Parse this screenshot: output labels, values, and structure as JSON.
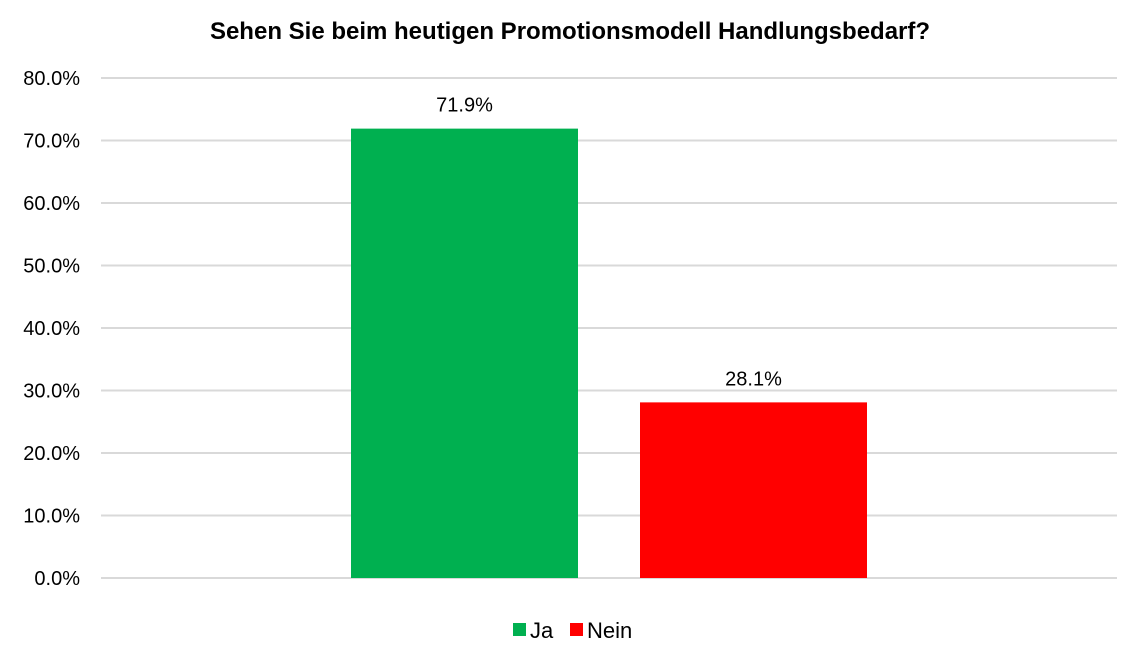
{
  "chart_data": {
    "type": "bar",
    "title": "Sehen Sie beim heutigen Promotionsmodell Handlungsbedarf?",
    "xlabel": "",
    "ylabel": "",
    "ylim": [
      0,
      80
    ],
    "y_ticks": [
      "0.0%",
      "10.0%",
      "20.0%",
      "30.0%",
      "40.0%",
      "50.0%",
      "60.0%",
      "70.0%",
      "80.0%"
    ],
    "grid": true,
    "legend_position": "bottom",
    "series": [
      {
        "name": "Ja",
        "value": 71.9,
        "label": "71.9%",
        "color": "#00b050"
      },
      {
        "name": "Nein",
        "value": 28.1,
        "label": "28.1%",
        "color": "#ff0000"
      }
    ]
  }
}
